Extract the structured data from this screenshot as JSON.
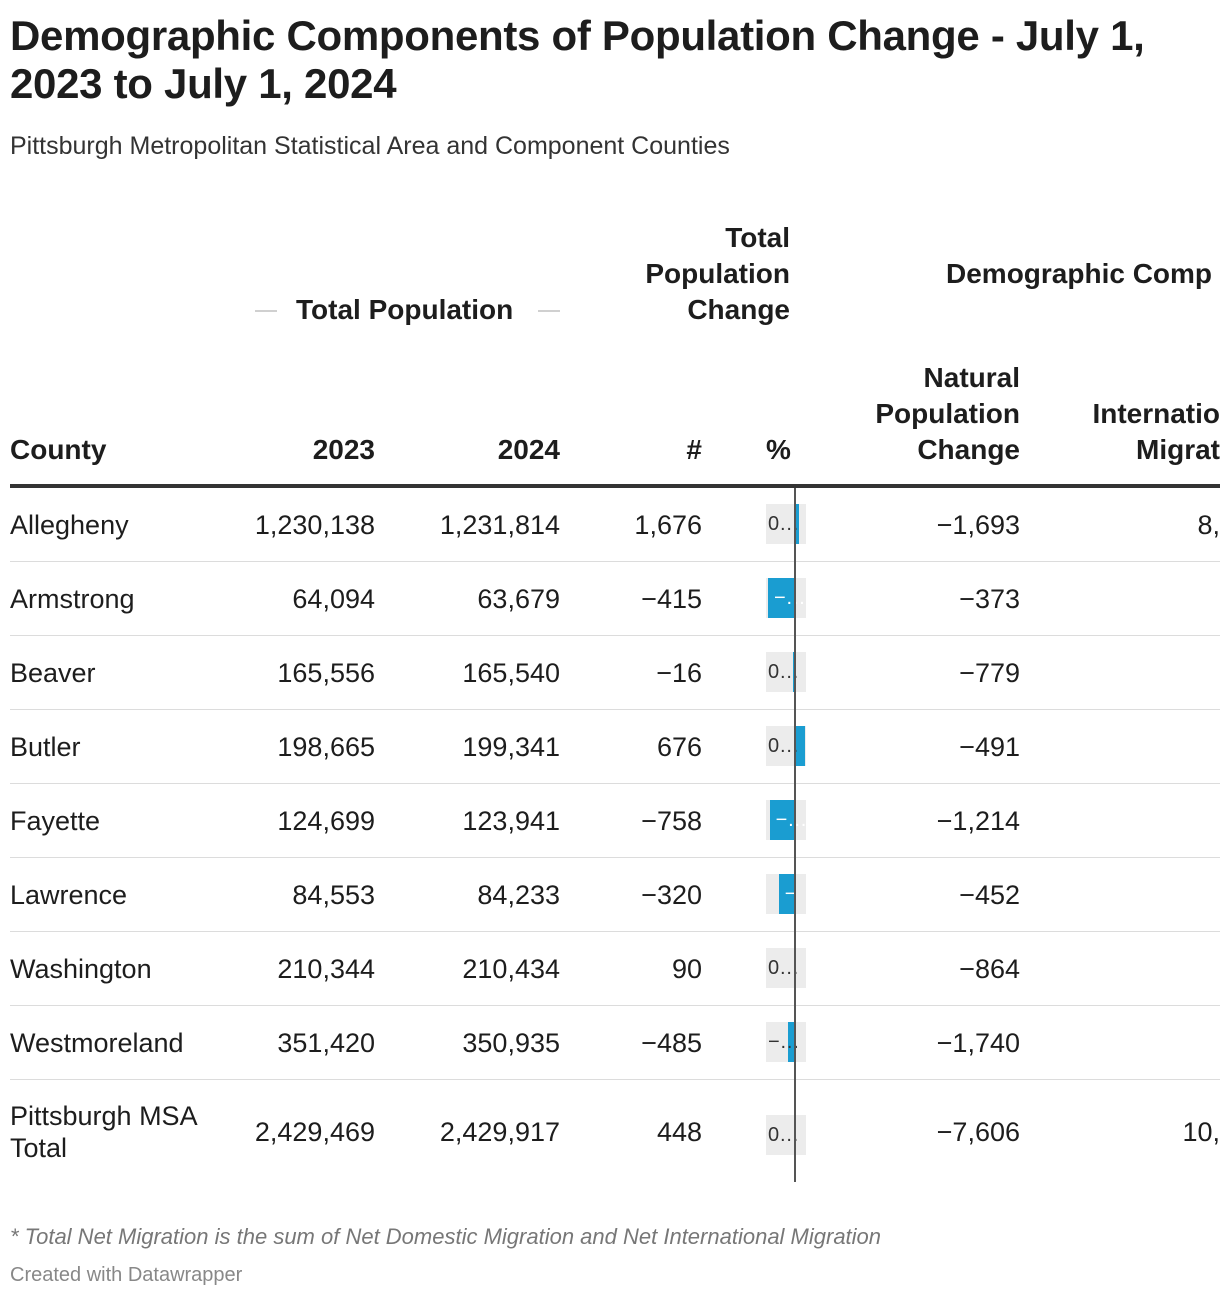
{
  "title": "Demographic Components of Population Change - July 1, 2023 to July 1, 2024",
  "subtitle": "Pittsburgh Metropolitan Statistical Area and Component Counties",
  "headers": {
    "group_total_population": "Total Population",
    "group_total_change": "Total Population Change",
    "group_demographic": "Demographic Comp",
    "county": "County",
    "y2023": "2023",
    "y2024": "2024",
    "change_num": "#",
    "change_pct": "%",
    "natural": "Natural Population Change",
    "international": "Internatio Migrat"
  },
  "chart_data": {
    "type": "table",
    "columns": [
      "County",
      "2023",
      "2024",
      "#",
      "%",
      "Natural Population Change",
      "International Migration (partial)"
    ],
    "rows": [
      {
        "county": "Allegheny",
        "pop2023": "1,230,138",
        "pop2024": "1,231,814",
        "change": "1,676",
        "pct": 0.14,
        "pct_label": "0…",
        "natural": "−1,693",
        "intl": "8,"
      },
      {
        "county": "Armstrong",
        "pop2023": "64,094",
        "pop2024": "63,679",
        "change": "−415",
        "pct": -0.65,
        "pct_label": "−…",
        "natural": "−373",
        "intl": ""
      },
      {
        "county": "Beaver",
        "pop2023": "165,556",
        "pop2024": "165,540",
        "change": "−16",
        "pct": -0.01,
        "pct_label": "0…",
        "natural": "−779",
        "intl": ""
      },
      {
        "county": "Butler",
        "pop2023": "198,665",
        "pop2024": "199,341",
        "change": "676",
        "pct": 0.34,
        "pct_label": "0…",
        "natural": "−491",
        "intl": ""
      },
      {
        "county": "Fayette",
        "pop2023": "124,699",
        "pop2024": "123,941",
        "change": "−758",
        "pct": -0.61,
        "pct_label": "−…",
        "natural": "−1,214",
        "intl": ""
      },
      {
        "county": "Lawrence",
        "pop2023": "84,553",
        "pop2024": "84,233",
        "change": "−320",
        "pct": -0.38,
        "pct_label": "−",
        "natural": "−452",
        "intl": ""
      },
      {
        "county": "Washington",
        "pop2023": "210,344",
        "pop2024": "210,434",
        "change": "90",
        "pct": 0.04,
        "pct_label": "0…",
        "natural": "−864",
        "intl": ""
      },
      {
        "county": "Westmoreland",
        "pop2023": "351,420",
        "pop2024": "350,935",
        "change": "−485",
        "pct": -0.14,
        "pct_label": "−…",
        "natural": "−1,740",
        "intl": ""
      },
      {
        "county": "Pittsburgh MSA Total",
        "pop2023": "2,429,469",
        "pop2024": "2,429,917",
        "change": "448",
        "pct": 0.02,
        "pct_label": "0…",
        "natural": "−7,606",
        "intl": "10,"
      }
    ],
    "pct_range": [
      -0.65,
      0.34
    ],
    "bar_color": "#1a9dd1"
  },
  "footnote": "* Total Net Migration is the sum of Net Domestic Migration and Net International Migration",
  "credit": "Created with Datawrapper"
}
